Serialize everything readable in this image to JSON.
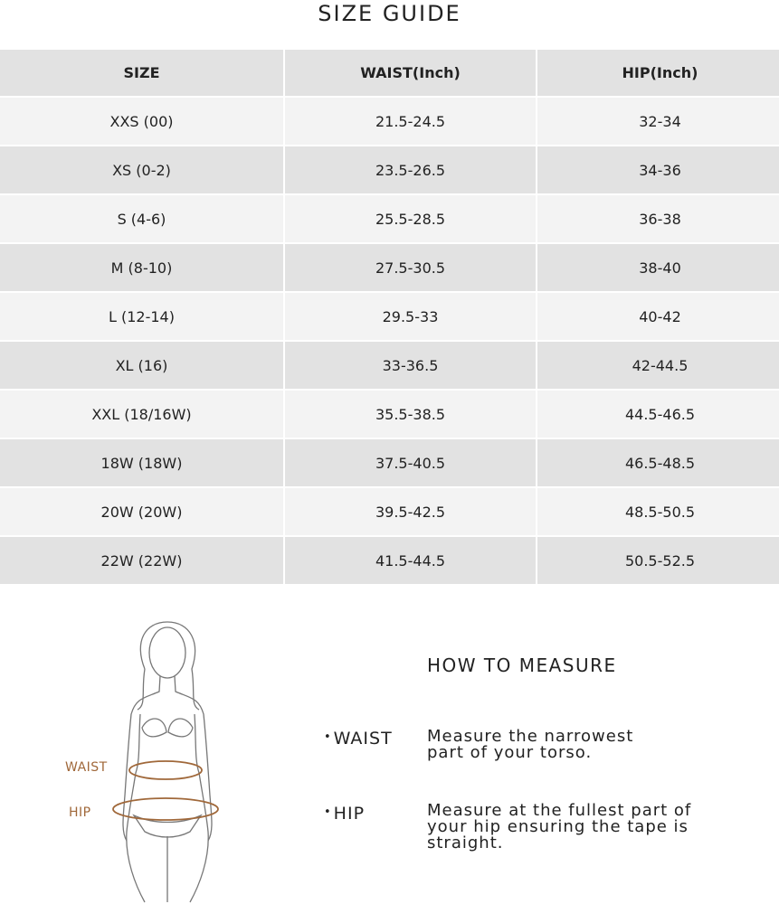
{
  "title": "SIZE GUIDE",
  "table": {
    "headers": [
      "SIZE",
      "WAIST(Inch)",
      "HIP(Inch)"
    ],
    "rows": [
      [
        "XXS (00)",
        "21.5-24.5",
        "32-34"
      ],
      [
        "XS (0-2)",
        "23.5-26.5",
        "34-36"
      ],
      [
        "S (4-6)",
        "25.5-28.5",
        "36-38"
      ],
      [
        "M (8-10)",
        "27.5-30.5",
        "38-40"
      ],
      [
        "L (12-14)",
        "29.5-33",
        "40-42"
      ],
      [
        "XL (16)",
        "33-36.5",
        "42-44.5"
      ],
      [
        "XXL (18/16W)",
        "35.5-38.5",
        "44.5-46.5"
      ],
      [
        "18W (18W)",
        "37.5-40.5",
        "46.5-48.5"
      ],
      [
        "20W (20W)",
        "39.5-42.5",
        "48.5-50.5"
      ],
      [
        "22W (22W)",
        "41.5-44.5",
        "50.5-52.5"
      ]
    ]
  },
  "figure": {
    "waist_label": "WAIST",
    "hip_label": "HIP"
  },
  "measure": {
    "title": "HOW TO MEASURE",
    "items": [
      {
        "label": "WAIST",
        "text": "Measure the narrowest part of your torso."
      },
      {
        "label": "HIP",
        "text": "Measure at the fullest part of your hip ensuring the tape is straight."
      }
    ]
  }
}
